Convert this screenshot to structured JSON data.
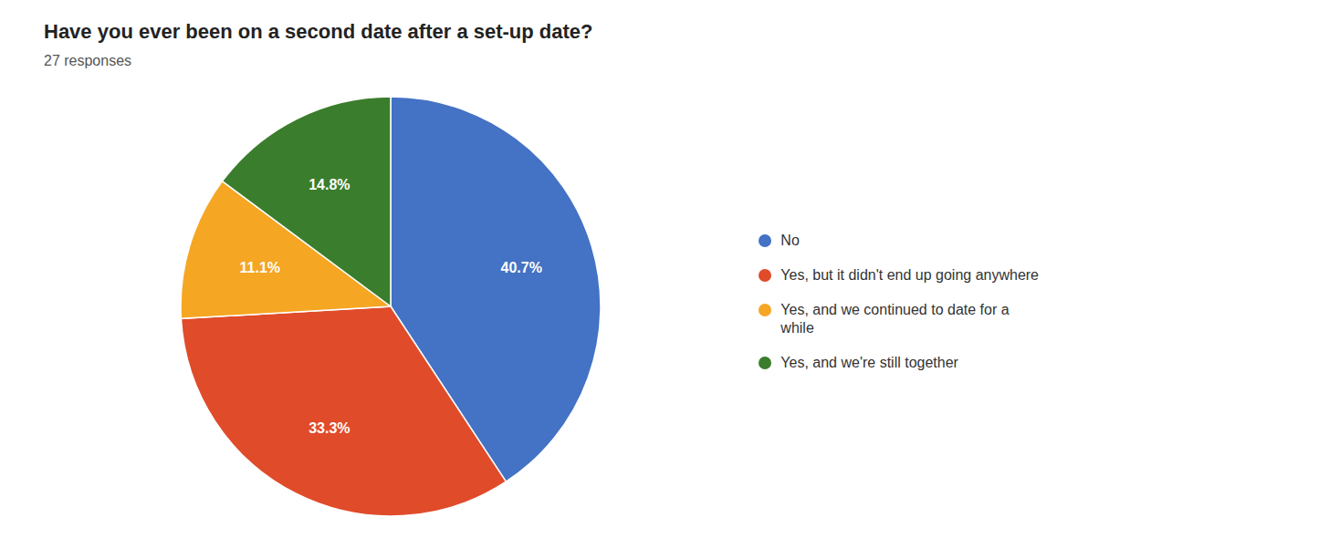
{
  "chart_data": {
    "type": "pie",
    "title": "Have you ever been on a second date after a set-up date?",
    "subtitle": "27 responses",
    "categories": [
      "No",
      "Yes, but it didn't end up going anywhere",
      "Yes, and we continued to date for a\nwhile",
      "Yes, and we're still together"
    ],
    "values": [
      40.7,
      33.3,
      11.1,
      14.8
    ],
    "value_labels": [
      "40.7%",
      "33.3%",
      "11.1%",
      "14.8%"
    ],
    "colors": [
      "#4472C4",
      "#E04B2A",
      "#F5A623",
      "#3A7D2C"
    ],
    "data_labels": true,
    "legend": "right"
  }
}
